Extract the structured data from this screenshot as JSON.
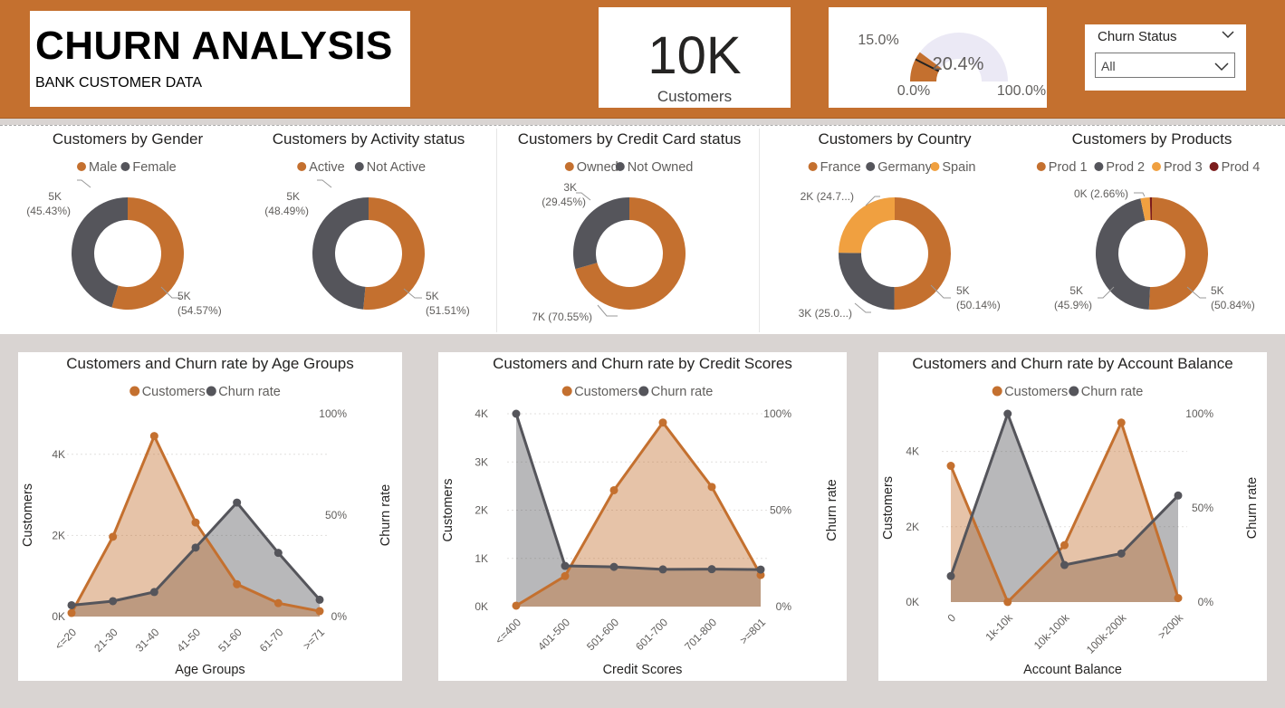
{
  "header": {
    "title": "CHURN ANALYSIS",
    "subtitle": "BANK CUSTOMER DATA",
    "kpi": {
      "value": "10K",
      "label": "Customers"
    },
    "gauge": {
      "value_label": "20.4%",
      "value_fraction": 0.204,
      "target_label": "15.0%",
      "target_fraction": 0.15,
      "min_label": "0.0%",
      "max_label": "100.0%"
    },
    "slicer": {
      "title": "Churn Status",
      "selected": "All"
    }
  },
  "colors": {
    "brand": "#c4702f",
    "dark": "#55555b",
    "orange_light": "#f0a040",
    "maroon": "#7b1c1c",
    "gauge_track": "#ebe9f5"
  },
  "donuts": [
    {
      "title": "Customers by Gender",
      "legend": [
        "Male",
        "Female"
      ],
      "colors": [
        "#c4702f",
        "#55555b"
      ],
      "values": [
        54.57,
        45.43
      ],
      "labels": [
        {
          "v": "5K",
          "p": "(54.57%)"
        },
        {
          "v": "5K",
          "p": "(45.43%)"
        }
      ]
    },
    {
      "title": "Customers by Activity status",
      "legend": [
        "Active",
        "Not Active"
      ],
      "colors": [
        "#c4702f",
        "#55555b"
      ],
      "values": [
        51.51,
        48.49
      ],
      "labels": [
        {
          "v": "5K",
          "p": "(51.51%)"
        },
        {
          "v": "5K",
          "p": "(48.49%)"
        }
      ]
    },
    {
      "title": "Customers by Credit Card status",
      "legend": [
        "Owned",
        "Not Owned"
      ],
      "colors": [
        "#c4702f",
        "#55555b"
      ],
      "values": [
        70.55,
        29.45
      ],
      "labels": [
        {
          "v": "7K (70.55%)",
          "p": ""
        },
        {
          "v": "3K",
          "p": "(29.45%)"
        }
      ]
    },
    {
      "title": "Customers by Country",
      "legend": [
        "France",
        "Germany",
        "Spain"
      ],
      "colors": [
        "#c4702f",
        "#55555b",
        "#f0a040"
      ],
      "values": [
        50.14,
        25.09,
        24.77
      ],
      "labels": [
        {
          "v": "5K",
          "p": "(50.14%)"
        },
        {
          "v": "3K (25.0...)",
          "p": ""
        },
        {
          "v": "2K (24.7...)",
          "p": ""
        }
      ]
    },
    {
      "title": "Customers by Products",
      "legend": [
        "Prod 1",
        "Prod 2",
        "Prod 3",
        "Prod 4"
      ],
      "colors": [
        "#c4702f",
        "#55555b",
        "#f0a040",
        "#7b1c1c"
      ],
      "values": [
        50.84,
        45.9,
        2.66,
        0.6
      ],
      "labels": [
        {
          "v": "5K",
          "p": "(50.84%)"
        },
        {
          "v": "5K",
          "p": "(45.9%)"
        },
        {
          "v": "0K (2.66%)",
          "p": ""
        },
        null
      ]
    }
  ],
  "chart_data": [
    {
      "type": "line",
      "title": "Customers and Churn rate by Age Groups",
      "legend": [
        "Customers",
        "Churn rate"
      ],
      "xlabel": "Age Groups",
      "ylabel": "Customers",
      "y2label": "Churn rate",
      "categories": [
        "<=20",
        "21-30",
        "31-40",
        "41-50",
        "51-60",
        "61-70",
        ">=71"
      ],
      "ylim": [
        0,
        5000
      ],
      "yticks": [
        0,
        2000,
        4000
      ],
      "yticklabels": [
        "0K",
        "2K",
        "4K"
      ],
      "y2lim": [
        0,
        100
      ],
      "y2ticks": [
        0,
        50,
        100
      ],
      "y2ticklabels": [
        "0%",
        "50%",
        "100%"
      ],
      "series": [
        {
          "name": "Customers",
          "axis": "left",
          "values": [
            89,
            1968,
            4451,
            2320,
            797,
            331,
            133
          ]
        },
        {
          "name": "Churn rate",
          "axis": "right",
          "values": [
            5.6,
            7.6,
            12.1,
            34.0,
            56.2,
            31.4,
            8.3
          ]
        }
      ]
    },
    {
      "type": "line",
      "title": "Customers and Churn rate by Credit Scores",
      "legend": [
        "Customers",
        "Churn rate"
      ],
      "xlabel": "Credit Scores",
      "ylabel": "Customers",
      "y2label": "Churn rate",
      "categories": [
        "<=400",
        "401-500",
        "501-600",
        "601-700",
        "701-800",
        ">=801"
      ],
      "ylim": [
        0,
        4000
      ],
      "yticks": [
        0,
        1000,
        2000,
        3000,
        4000
      ],
      "yticklabels": [
        "0K",
        "1K",
        "2K",
        "3K",
        "4K"
      ],
      "y2lim": [
        0,
        100
      ],
      "y2ticks": [
        0,
        50,
        100
      ],
      "y2ticklabels": [
        "0%",
        "50%",
        "100%"
      ],
      "series": [
        {
          "name": "Customers",
          "axis": "left",
          "values": [
            19,
            633,
            2414,
            3818,
            2482,
            655
          ]
        },
        {
          "name": "Churn rate",
          "axis": "right",
          "values": [
            100,
            21.1,
            20.6,
            19.3,
            19.4,
            19.2
          ]
        }
      ]
    },
    {
      "type": "line",
      "title": "Customers and Churn rate by Account Balance",
      "legend": [
        "Customers",
        "Churn rate"
      ],
      "xlabel": "Account Balance",
      "ylabel": "Customers",
      "y2label": "Churn rate",
      "categories": [
        "0",
        "1k-10k",
        "10k-100k",
        "100k-200k",
        ">200k"
      ],
      "ylim": [
        0,
        5000
      ],
      "yticks": [
        0,
        2000,
        4000
      ],
      "yticklabels": [
        "0K",
        "2K",
        "4K"
      ],
      "y2lim": [
        0,
        100
      ],
      "y2ticks": [
        0,
        50,
        100
      ],
      "y2ticklabels": [
        "0%",
        "50%",
        "100%"
      ],
      "series": [
        {
          "name": "Customers",
          "axis": "left",
          "values": [
            3617,
            2,
            1510,
            4765,
            106
          ]
        },
        {
          "name": "Churn rate",
          "axis": "right",
          "values": [
            13.8,
            100,
            19.7,
            25.8,
            56.6
          ]
        }
      ]
    }
  ]
}
